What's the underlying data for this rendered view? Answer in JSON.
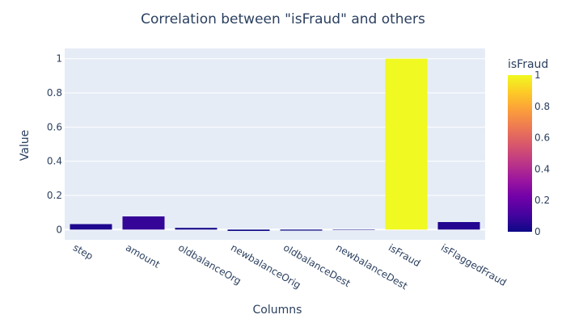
{
  "chart_data": {
    "type": "bar",
    "title": "Correlation between \"isFraud\" and others",
    "xlabel": "Columns",
    "ylabel": "Value",
    "categories": [
      "step",
      "amount",
      "oldbalanceOrg",
      "newbalanceOrig",
      "oldbalanceDest",
      "newbalanceDest",
      "isFraud",
      "isFlaggedFraud"
    ],
    "values": [
      0.032,
      0.077,
      0.01,
      -0.008,
      -0.006,
      0.001,
      1.0,
      0.044
    ],
    "ylim": [
      -0.06,
      1.06
    ],
    "yticks": [
      0,
      0.2,
      0.4,
      0.6,
      0.8,
      1
    ],
    "ytick_labels": [
      "0",
      "0.2",
      "0.4",
      "0.6",
      "0.8",
      "1"
    ],
    "colorbar": {
      "title": "isFraud",
      "range": [
        0,
        1
      ],
      "ticks": [
        0,
        0.2,
        0.4,
        0.6,
        0.8,
        1
      ],
      "tick_labels": [
        "0",
        "0.2",
        "0.4",
        "0.6",
        "0.8",
        "1"
      ],
      "colorscale": [
        "#0d0887",
        "#46039f",
        "#7201a8",
        "#9c179e",
        "#bd3786",
        "#d8576b",
        "#ed7953",
        "#fb9f3a",
        "#fdca26",
        "#f0f921"
      ]
    },
    "grid": true,
    "plot_background": "#e5ecf6"
  }
}
